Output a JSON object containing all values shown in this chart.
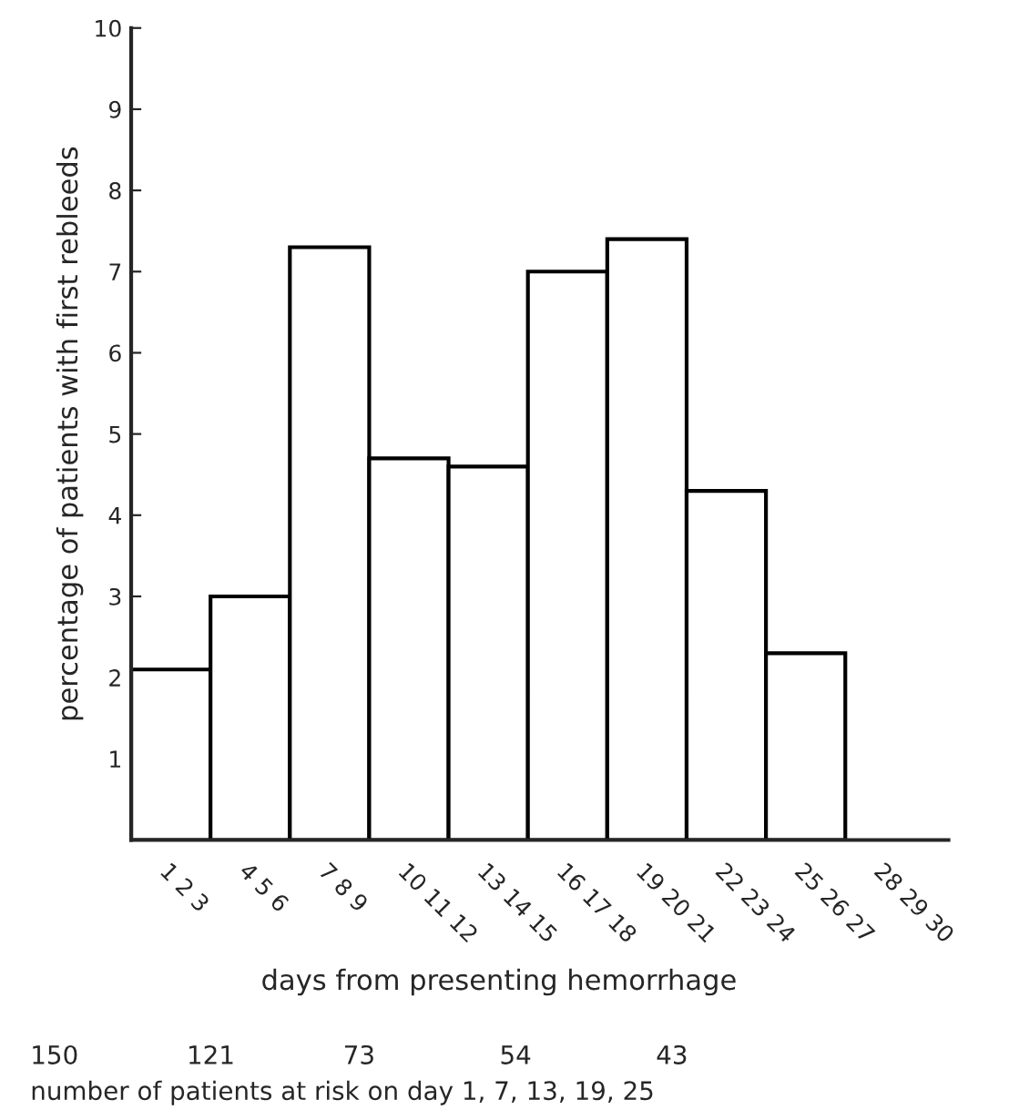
{
  "chart_data": {
    "type": "bar",
    "xlabel": "days from presenting hemorrhage",
    "ylabel": "percentage of patients with first rebleeds",
    "categories": [
      "1 2 3",
      "4 5 6",
      "7 8 9",
      "10 11 12",
      "13 14 15",
      "16 17 18",
      "19 20 21",
      "22 23 24",
      "25 26 27",
      "28 29 30"
    ],
    "values": [
      2.1,
      3.0,
      7.3,
      4.7,
      4.6,
      7.0,
      7.4,
      4.3,
      2.3,
      null
    ],
    "color": "#ffffff",
    "ylim": [
      0,
      10
    ],
    "yticks": [
      1,
      2,
      3,
      4,
      5,
      6,
      7,
      8,
      9,
      10
    ],
    "grid": false,
    "legend": false,
    "annotations": [
      "150",
      "121",
      "73",
      "54",
      "43",
      "number of patients at risk on day 1, 7, 13, 19, 25"
    ]
  }
}
